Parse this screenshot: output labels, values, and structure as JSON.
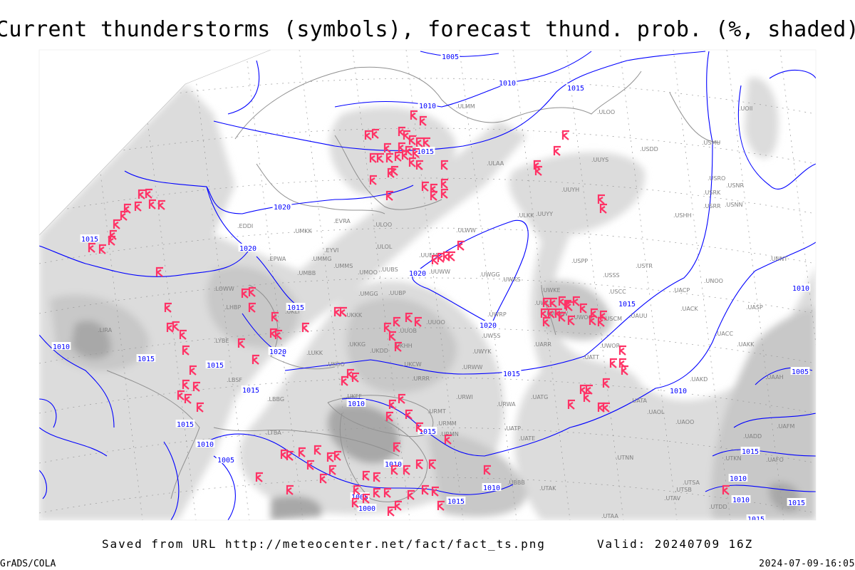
{
  "title": "Current thunderstorms (symbols), forecast thund. prob. (%, shaded)",
  "footer": {
    "saved_from": "Saved from URL http://meteocenter.net/fact/fact_ts.png",
    "valid": "Valid: 20240709 16Z",
    "software": "GrADS/COLA",
    "generated": "2024-07-09-16:05"
  },
  "colors": {
    "isobars": "#0000ff",
    "thunderstorm_symbol": "#ff3366",
    "shading_light": "#dcdcdc",
    "shading_mid": "#c8c8c8",
    "shading_dark": "#a8a8a8",
    "coastline": "#909090"
  },
  "legend": {
    "symbol_icon": "thunderstorm-symbol-icon",
    "shading": "forecast thunderstorm probability (%)"
  },
  "isobar_labels": [
    "1005",
    "1010",
    "1015",
    "1010",
    "1015",
    "1020",
    "1020",
    "1020",
    "1015",
    "1020",
    "1020",
    "1015",
    "1015",
    "1015",
    "1015",
    "1010",
    "1010",
    "1005",
    "1010",
    "1015",
    "1010",
    "1015",
    "1010",
    "1010",
    "1000",
    "1005",
    "1015",
    "1010",
    "1015",
    "1015",
    "1010",
    "1005",
    "1015",
    "1015",
    "1010",
    "1015"
  ],
  "stations": [
    "ULMM",
    "ULOO",
    "USDD",
    "USMU",
    "UUYS",
    "ULAA",
    "USRO",
    "USRK",
    "USNR",
    "USRR",
    "USNN",
    "UUYH",
    "USHH",
    "ULKK",
    "UUYY",
    "ULWW",
    "EVRA",
    "ULOO",
    "UMKK",
    "EYVI",
    "ULOL",
    "UMMG",
    "EPWA",
    "UUEM",
    "UMBB",
    "UMMS",
    "UMOO",
    "UUBS",
    "UUWW",
    "UWGG",
    "UWKS",
    "USPP",
    "USSS",
    "USTR",
    "UACP",
    "UNOO",
    "UNNT",
    "UWKE",
    "UWLL",
    "UWWW",
    "USCC",
    "UACK",
    "UASP",
    "UAUU",
    "UMGG",
    "UUBP",
    "LHBP",
    "UKLI",
    "UKKK",
    "UUOO",
    "UWRP",
    "UWOO",
    "USCM",
    "UUOB",
    "UWSS",
    "UACC",
    "LYBE",
    "UKHH",
    "UKDD",
    "UKKG",
    "LUKK",
    "UWYK",
    "UARR",
    "UATT",
    "UWOR",
    "UAKK",
    "UKOO",
    "UKCW",
    "URWW",
    "URRR",
    "LBSF",
    "UKFF",
    "URWI",
    "UATG",
    "UAKD",
    "UATA",
    "URWA",
    "LBBG",
    "URMT",
    "UAOL",
    "UAOO",
    "URMM",
    "UATP",
    "URMN",
    "UATE",
    "LTBA",
    "UTNN",
    "UTSA",
    "UTSB",
    "UTAV",
    "UTAK",
    "UBBB",
    "UTAA",
    "UAAH",
    "UAFM",
    "UADD",
    "UTKN",
    "UAFO",
    "UTDD",
    "UOII",
    "LOWW",
    "EDDI",
    "LIRA"
  ]
}
